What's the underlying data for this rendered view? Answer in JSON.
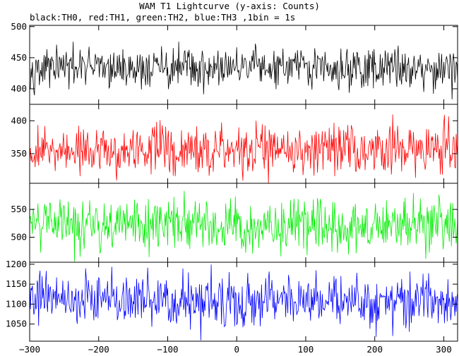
{
  "chart_data": {
    "type": "line",
    "title": "WAM T1 Lightcurve (y-axis: Counts)",
    "subtitle": "black:TH0, red:TH1, green:TH2, blue:TH3 ,1bin = 1s",
    "xlim": [
      -300,
      320
    ],
    "x_ticks": [
      -300,
      -200,
      -100,
      0,
      100,
      200,
      300
    ],
    "bin_seconds": 1,
    "panels": [
      {
        "series": "TH0",
        "color": "#000000",
        "ylim": [
          375,
          502
        ],
        "y_ticks": [
          400,
          450,
          500
        ],
        "mean": 433,
        "sd": 16
      },
      {
        "series": "TH1",
        "color": "#ff0000",
        "ylim": [
          305,
          425
        ],
        "y_ticks": [
          350,
          400
        ],
        "mean": 355,
        "sd": 19
      },
      {
        "series": "TH2",
        "color": "#00ee00",
        "ylim": [
          455,
          597
        ],
        "y_ticks": [
          500,
          550
        ],
        "mean": 523,
        "sd": 23
      },
      {
        "series": "TH3",
        "color": "#0000ff",
        "ylim": [
          1007,
          1205
        ],
        "y_ticks": [
          1050,
          1100,
          1150,
          1200
        ],
        "mean": 1108,
        "sd": 33
      }
    ]
  }
}
